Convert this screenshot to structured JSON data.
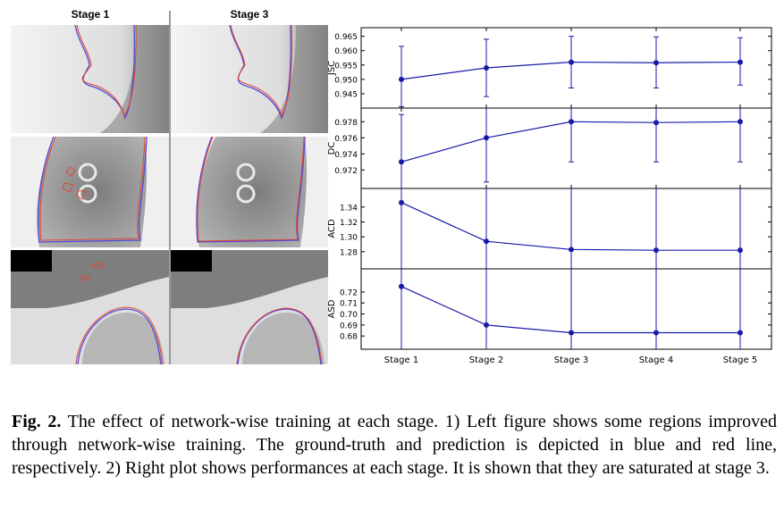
{
  "figure": {
    "left_headers": [
      "Stage 1",
      "Stage 3"
    ],
    "caption": {
      "label": "Fig. 2.",
      "text": " The effect of network-wise training at each stage. 1) Left figure shows some regions improved through network-wise training. The ground-truth and prediction is depicted in blue and red line, respectively. 2) Right plot shows performances at each stage. It is shown that they are saturated at stage 3."
    }
  },
  "colors": {
    "series": "#1a1aa8",
    "truth_line": "#4b4bd9",
    "pred_line": "#e0473a"
  },
  "chart_data": [
    {
      "type": "line",
      "ylabel": "JSC",
      "x": [
        "Stage 1",
        "Stage 2",
        "Stage 3",
        "Stage 4",
        "Stage 5"
      ],
      "values": [
        0.95,
        0.954,
        0.956,
        0.9558,
        0.956
      ],
      "err_low": [
        0.9405,
        0.944,
        0.947,
        0.947,
        0.948
      ],
      "err_high": [
        0.9615,
        0.964,
        0.965,
        0.9648,
        0.9645
      ],
      "ylim": [
        0.94,
        0.968
      ],
      "yticks": [
        "0.965",
        "0.960",
        "0.955",
        "0.950",
        "0.945"
      ],
      "ytick_values": [
        0.965,
        0.96,
        0.955,
        0.95,
        0.945
      ]
    },
    {
      "type": "line",
      "ylabel": "DC",
      "x": [
        "Stage 1",
        "Stage 2",
        "Stage 3",
        "Stage 4",
        "Stage 5"
      ],
      "values": [
        0.973,
        0.976,
        0.978,
        0.9779,
        0.978
      ],
      "err_low": [
        0.969,
        0.9705,
        0.973,
        0.973,
        0.973
      ],
      "err_high": [
        0.9789,
        0.9797,
        0.9797,
        0.9797,
        0.9797
      ],
      "ylim": [
        0.9697,
        0.9797
      ],
      "yticks": [
        "0.978",
        "0.976",
        "0.974",
        "0.972"
      ],
      "ytick_values": [
        0.978,
        0.976,
        0.974,
        0.972
      ]
    },
    {
      "type": "line",
      "ylabel": "ACD",
      "x": [
        "Stage 1",
        "Stage 2",
        "Stage 3",
        "Stage 4",
        "Stage 5"
      ],
      "values": [
        1.346,
        1.294,
        1.283,
        1.282,
        1.282
      ],
      "err_low": [
        1.23,
        1.23,
        1.23,
        1.23,
        1.23
      ],
      "err_high": [
        1.365,
        1.365,
        1.365,
        1.365,
        1.365
      ],
      "ylim": [
        1.257,
        1.365
      ],
      "yticks": [
        "1.34",
        "1.32",
        "1.30",
        "1.28"
      ],
      "ytick_values": [
        1.34,
        1.32,
        1.3,
        1.28
      ]
    },
    {
      "type": "line",
      "ylabel": "ASD",
      "x": [
        "Stage 1",
        "Stage 2",
        "Stage 3",
        "Stage 4",
        "Stage 5"
      ],
      "values": [
        0.725,
        0.69,
        0.683,
        0.683,
        0.683
      ],
      "err_low": [
        0.66,
        0.66,
        0.66,
        0.66,
        0.66
      ],
      "err_high": [
        0.741,
        0.741,
        0.741,
        0.741,
        0.741
      ],
      "ylim": [
        0.668,
        0.741
      ],
      "yticks": [
        "0.72",
        "0.71",
        "0.70",
        "0.69",
        "0.68"
      ],
      "ytick_values": [
        0.72,
        0.71,
        0.7,
        0.69,
        0.68
      ]
    }
  ]
}
